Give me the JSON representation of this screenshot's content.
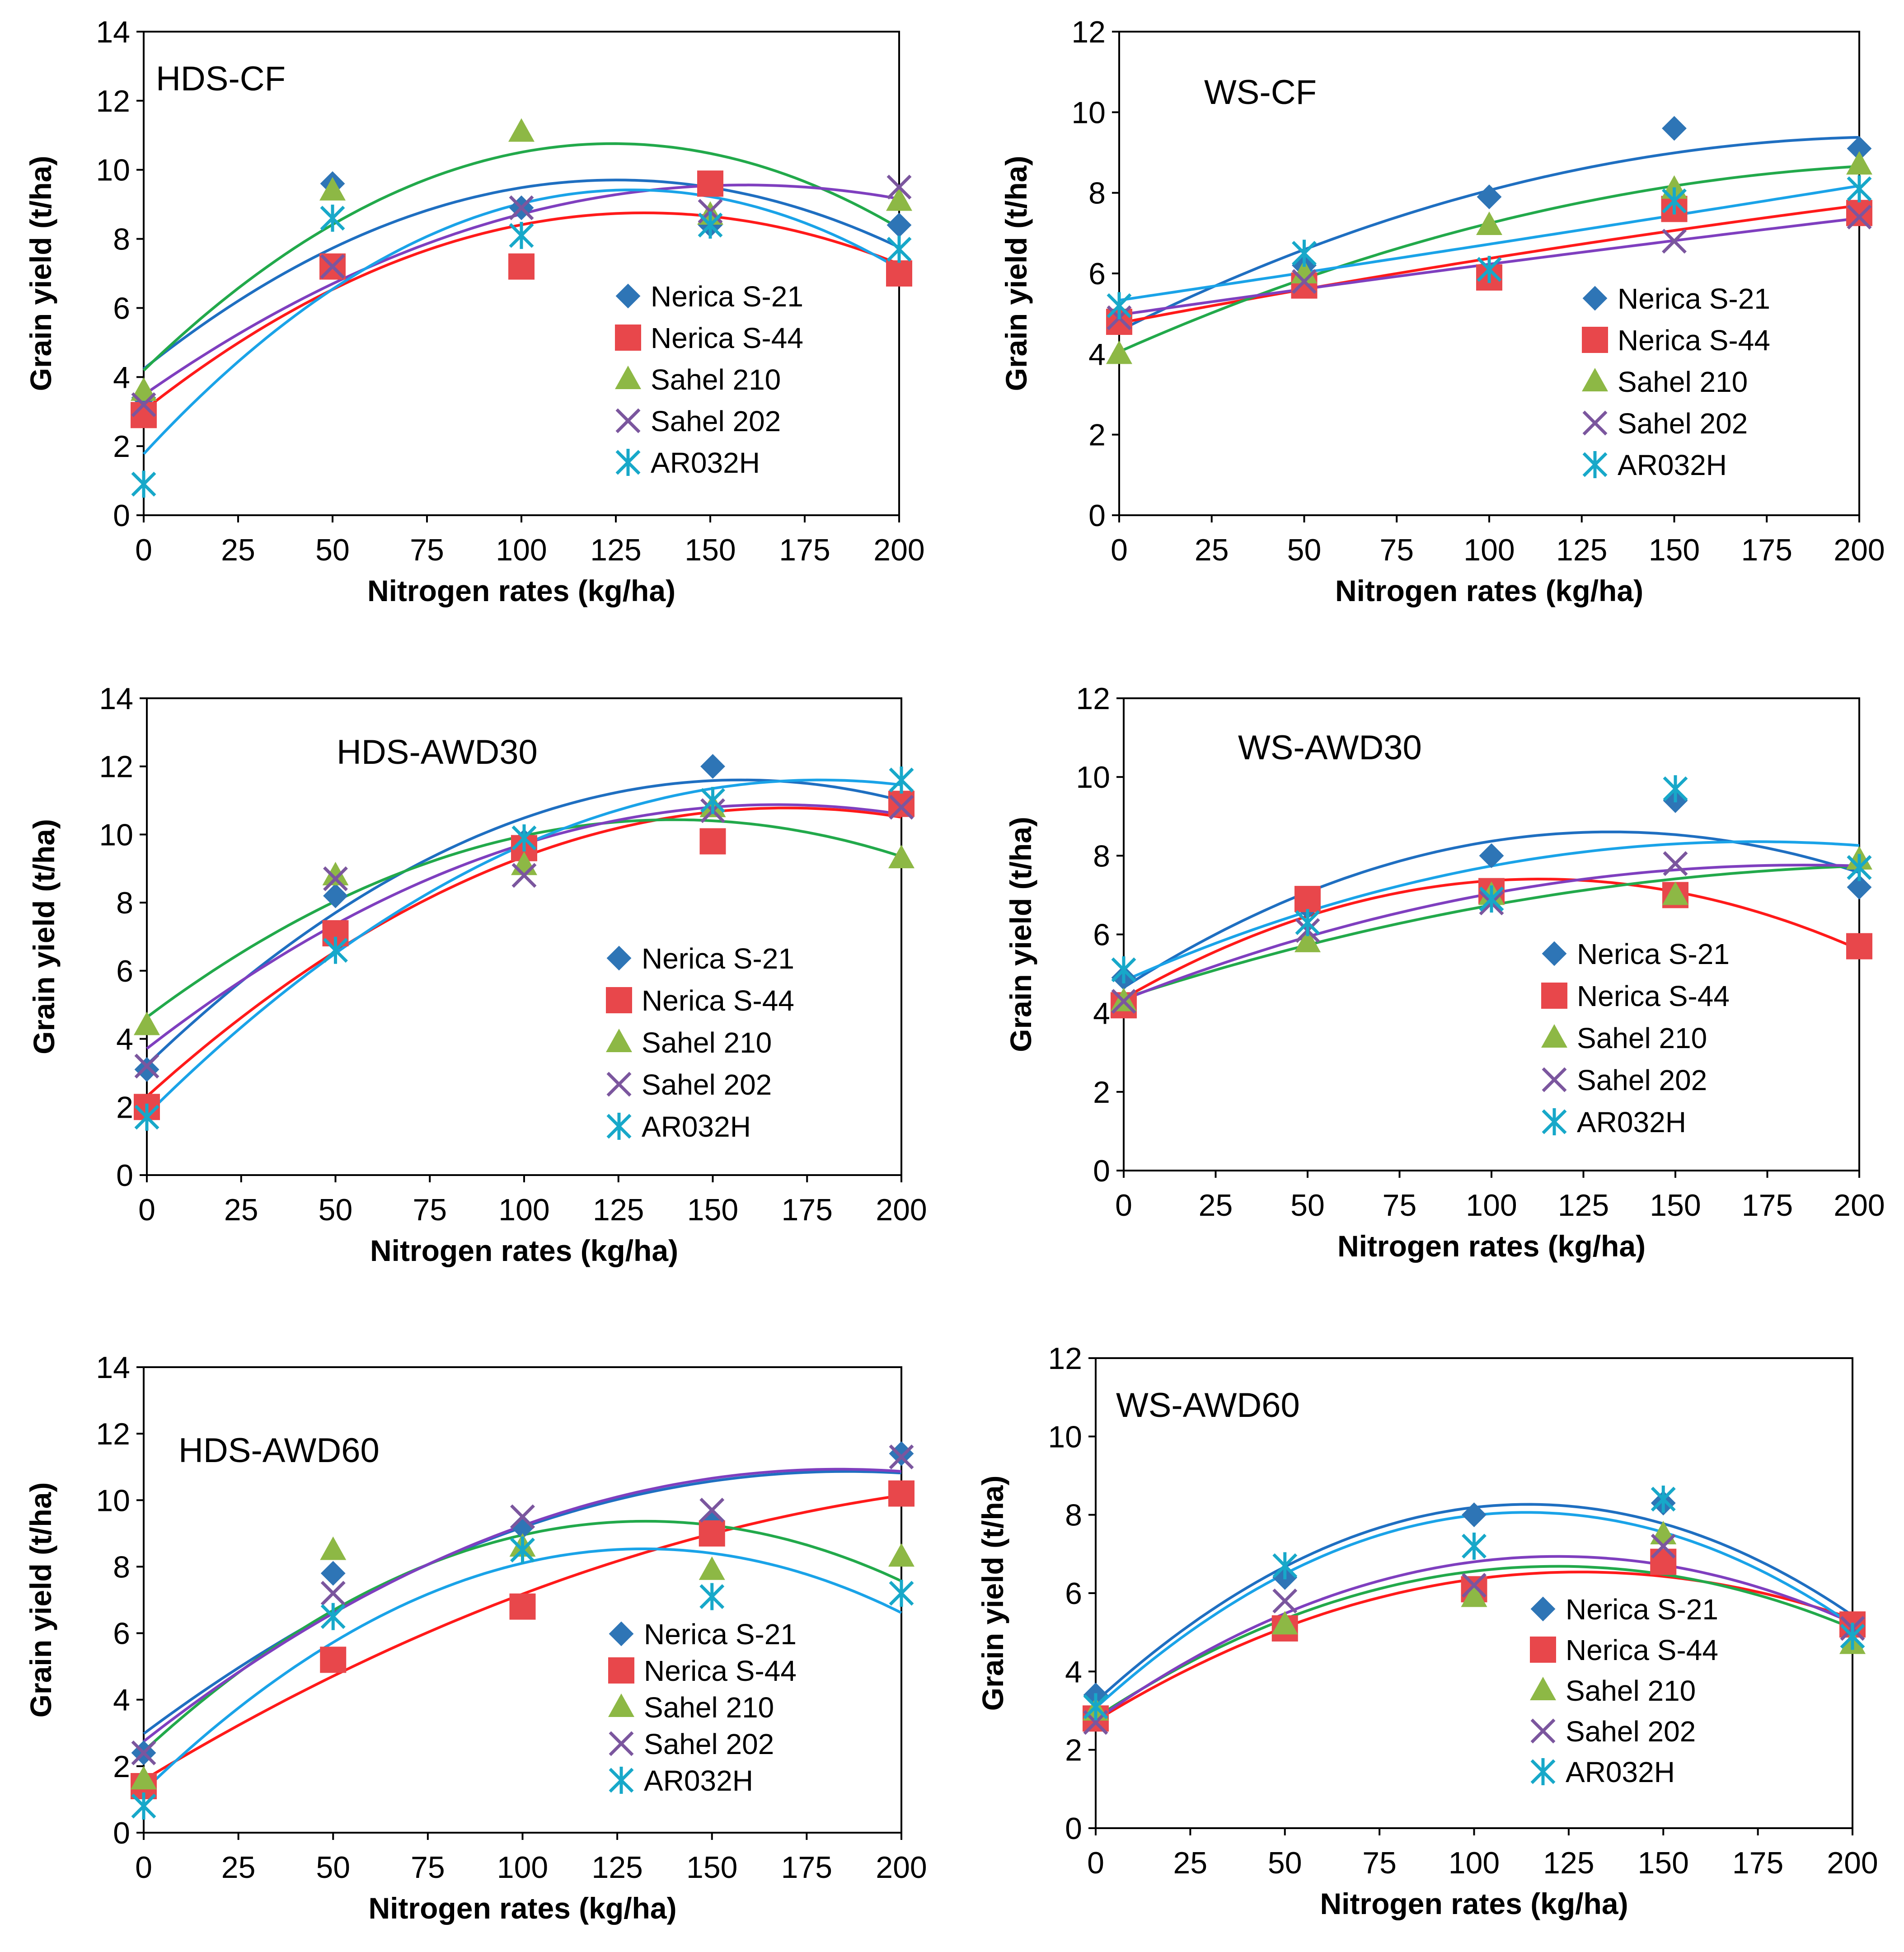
{
  "colors": {
    "series": [
      "#2E75B6",
      "#E8474B",
      "#8DB845",
      "#7B569E",
      "#17A8C9"
    ],
    "trend": [
      "#1F6FC1",
      "#FF1A1A",
      "#22A94B",
      "#7F3FBF",
      "#1AA3E8"
    ],
    "axis": "#000000"
  },
  "chart_data": [
    {
      "type": "scatter",
      "panel_label": "HDS-CF",
      "xlabel": "Nitrogen rates (kg/ha)",
      "ylabel": "Grain yield (t/ha)",
      "xlim": [
        0,
        200
      ],
      "ylim": [
        0,
        14
      ],
      "x_ticks": [
        0,
        25,
        50,
        75,
        100,
        125,
        150,
        175,
        200
      ],
      "y_ticks": [
        0,
        2,
        4,
        6,
        8,
        10,
        12,
        14
      ],
      "x": [
        0,
        50,
        100,
        150,
        200
      ],
      "trendline": "polynomial-order-2",
      "legend_position": "inside-right",
      "series": [
        {
          "name": "Nerica S-21",
          "marker": "diamond",
          "values": [
            3.4,
            9.6,
            8.9,
            8.4,
            8.4
          ]
        },
        {
          "name": "Nerica S-44",
          "marker": "square",
          "values": [
            2.9,
            7.2,
            7.2,
            9.6,
            7.0
          ]
        },
        {
          "name": "Sahel 210",
          "marker": "triangle",
          "values": [
            3.6,
            9.4,
            11.1,
            8.7,
            9.1
          ]
        },
        {
          "name": "Sahel 202",
          "marker": "x",
          "values": [
            3.2,
            7.2,
            8.9,
            8.8,
            9.5
          ]
        },
        {
          "name": "AR032H",
          "marker": "asterisk",
          "values": [
            0.9,
            8.6,
            8.1,
            8.4,
            7.7
          ]
        }
      ]
    },
    {
      "type": "scatter",
      "panel_label": "WS-CF",
      "xlabel": "Nitrogen rates (kg/ha)",
      "ylabel": "Grain yield (t/ha)",
      "xlim": [
        0,
        200
      ],
      "ylim": [
        0,
        12
      ],
      "x_ticks": [
        0,
        25,
        50,
        75,
        100,
        125,
        150,
        175,
        200
      ],
      "y_ticks": [
        0,
        2,
        4,
        6,
        8,
        10,
        12
      ],
      "x": [
        0,
        50,
        100,
        150,
        200
      ],
      "trendline": "polynomial-order-2",
      "legend_position": "inside-right",
      "series": [
        {
          "name": "Nerica S-21",
          "marker": "diamond",
          "values": [
            4.8,
            6.2,
            7.9,
            9.6,
            9.1
          ]
        },
        {
          "name": "Nerica S-44",
          "marker": "square",
          "values": [
            4.8,
            5.7,
            5.9,
            7.6,
            7.5
          ]
        },
        {
          "name": "Sahel 210",
          "marker": "triangle",
          "values": [
            4.0,
            6.0,
            7.2,
            8.1,
            8.7
          ]
        },
        {
          "name": "Sahel 202",
          "marker": "x",
          "values": [
            4.9,
            5.8,
            6.1,
            6.8,
            7.4
          ]
        },
        {
          "name": "AR032H",
          "marker": "asterisk",
          "values": [
            5.2,
            6.5,
            6.1,
            7.8,
            8.1
          ]
        }
      ]
    },
    {
      "type": "scatter",
      "panel_label": "HDS-AWD30",
      "xlabel": "Nitrogen rates (kg/ha)",
      "ylabel": "Grain yield (t/ha)",
      "xlim": [
        0,
        200
      ],
      "ylim": [
        0,
        14
      ],
      "x_ticks": [
        0,
        25,
        50,
        75,
        100,
        125,
        150,
        175,
        200
      ],
      "y_ticks": [
        0,
        2,
        4,
        6,
        8,
        10,
        12,
        14
      ],
      "x": [
        0,
        50,
        100,
        150,
        200
      ],
      "trendline": "polynomial-order-2",
      "legend_position": "inside-right",
      "series": [
        {
          "name": "Nerica S-21",
          "marker": "diamond",
          "values": [
            3.1,
            8.2,
            9.8,
            12.0,
            10.9
          ]
        },
        {
          "name": "Nerica S-44",
          "marker": "square",
          "values": [
            2.0,
            7.1,
            9.6,
            9.8,
            10.9
          ]
        },
        {
          "name": "Sahel 210",
          "marker": "triangle",
          "values": [
            4.4,
            8.8,
            9.1,
            10.8,
            9.3
          ]
        },
        {
          "name": "Sahel 202",
          "marker": "x",
          "values": [
            3.2,
            8.7,
            8.8,
            10.7,
            10.8
          ]
        },
        {
          "name": "AR032H",
          "marker": "asterisk",
          "values": [
            1.7,
            6.6,
            9.9,
            11.0,
            11.6
          ]
        }
      ]
    },
    {
      "type": "scatter",
      "panel_label": "WS-AWD30",
      "xlabel": "Nitrogen rates (kg/ha)",
      "ylabel": "Grain yield (t/ha)",
      "xlim": [
        0,
        200
      ],
      "ylim": [
        0,
        12
      ],
      "x_ticks": [
        0,
        25,
        50,
        75,
        100,
        125,
        150,
        175,
        200
      ],
      "y_ticks": [
        0,
        2,
        4,
        6,
        8,
        10,
        12
      ],
      "x": [
        0,
        50,
        100,
        150,
        200
      ],
      "trendline": "polynomial-order-2",
      "legend_position": "inside-right",
      "series": [
        {
          "name": "Nerica S-21",
          "marker": "diamond",
          "values": [
            4.9,
            6.7,
            8.0,
            9.4,
            7.2
          ]
        },
        {
          "name": "Nerica S-44",
          "marker": "square",
          "values": [
            4.2,
            6.9,
            7.1,
            7.0,
            5.7
          ]
        },
        {
          "name": "Sahel 210",
          "marker": "triangle",
          "values": [
            4.3,
            5.8,
            7.0,
            7.0,
            7.9
          ]
        },
        {
          "name": "Sahel 202",
          "marker": "x",
          "values": [
            4.3,
            6.1,
            6.8,
            7.8,
            7.7
          ]
        },
        {
          "name": "AR032H",
          "marker": "asterisk",
          "values": [
            5.1,
            6.3,
            6.9,
            9.7,
            7.7
          ]
        }
      ]
    },
    {
      "type": "scatter",
      "panel_label": "HDS-AWD60",
      "xlabel": "Nitrogen rates (kg/ha)",
      "ylabel": "Grain yield (t/ha)",
      "xlim": [
        0,
        200
      ],
      "ylim": [
        0,
        14
      ],
      "x_ticks": [
        0,
        25,
        50,
        75,
        100,
        125,
        150,
        175,
        200
      ],
      "y_ticks": [
        0,
        2,
        4,
        6,
        8,
        10,
        12,
        14
      ],
      "x": [
        0,
        50,
        100,
        150,
        200
      ],
      "trendline": "polynomial-order-2",
      "legend_position": "inside-right",
      "series": [
        {
          "name": "Nerica S-21",
          "marker": "diamond",
          "values": [
            2.4,
            7.8,
            9.2,
            9.4,
            11.4
          ]
        },
        {
          "name": "Nerica S-44",
          "marker": "square",
          "values": [
            1.4,
            5.2,
            6.8,
            9.0,
            10.2
          ]
        },
        {
          "name": "Sahel 210",
          "marker": "triangle",
          "values": [
            1.6,
            8.5,
            8.6,
            7.9,
            8.3
          ]
        },
        {
          "name": "Sahel 202",
          "marker": "x",
          "values": [
            2.4,
            7.2,
            9.5,
            9.7,
            11.3
          ]
        },
        {
          "name": "AR032H",
          "marker": "asterisk",
          "values": [
            0.8,
            6.5,
            8.5,
            7.1,
            7.2
          ]
        }
      ]
    },
    {
      "type": "scatter",
      "panel_label": "WS-AWD60",
      "xlabel": "Nitrogen rates (kg/ha)",
      "ylabel": "Grain yield (t/ha)",
      "xlim": [
        0,
        200
      ],
      "ylim": [
        0,
        12
      ],
      "x_ticks": [
        0,
        25,
        50,
        75,
        100,
        125,
        150,
        175,
        200
      ],
      "y_ticks": [
        0,
        2,
        4,
        6,
        8,
        10,
        12
      ],
      "x": [
        0,
        50,
        100,
        150,
        200
      ],
      "trendline": "polynomial-order-2",
      "legend_position": "inside-right",
      "series": [
        {
          "name": "Nerica S-21",
          "marker": "diamond",
          "values": [
            3.4,
            6.4,
            8.0,
            8.3,
            5.2
          ]
        },
        {
          "name": "Nerica S-44",
          "marker": "square",
          "values": [
            2.8,
            5.1,
            6.1,
            6.8,
            5.2
          ]
        },
        {
          "name": "Sahel 210",
          "marker": "triangle",
          "values": [
            3.0,
            5.2,
            5.9,
            7.5,
            4.7
          ]
        },
        {
          "name": "Sahel 202",
          "marker": "x",
          "values": [
            2.7,
            5.8,
            6.2,
            7.2,
            5.1
          ]
        },
        {
          "name": "AR032H",
          "marker": "asterisk",
          "values": [
            3.1,
            6.7,
            7.2,
            8.4,
            4.9
          ]
        }
      ]
    }
  ]
}
